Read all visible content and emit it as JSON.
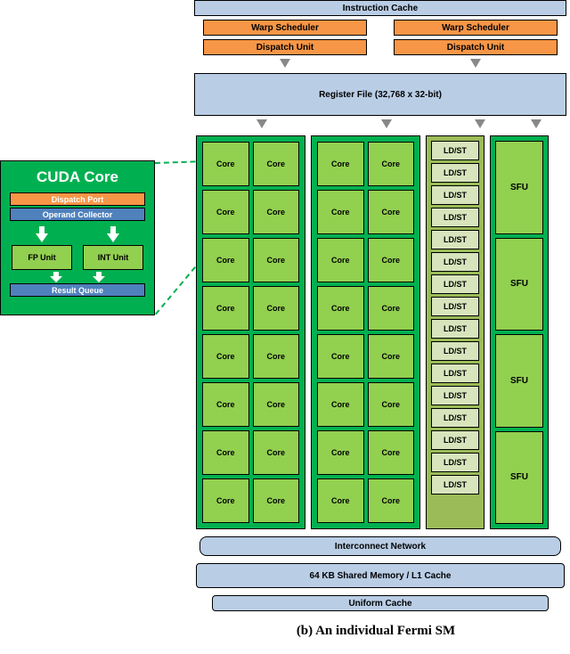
{
  "caption": "(b) An individual Fermi SM",
  "top": {
    "instruction_cache": "Instruction Cache",
    "warp_scheduler": "Warp Scheduler",
    "dispatch_unit": "Dispatch Unit",
    "register_file": "Register File (32,768 x 32-bit)"
  },
  "compute": {
    "core_label": "Core",
    "core_rows_per_column": 8,
    "core_columns": 2,
    "ldst_label": "LD/ST",
    "ldst_count": 16,
    "sfu_label": "SFU",
    "sfu_count": 4
  },
  "bottom": {
    "interconnect": "Interconnect Network",
    "shared_mem": "64 KB Shared Memory / L1 Cache",
    "uniform": "Uniform Cache"
  },
  "inset": {
    "title": "CUDA Core",
    "dispatch_port": "Dispatch Port",
    "operand_collector": "Operand Collector",
    "fp_unit": "FP Unit",
    "int_unit": "INT Unit",
    "result_queue": "Result Queue"
  },
  "colors": {
    "blue": "#b9cde5",
    "orange": "#f79646",
    "dark_green": "#00b050",
    "light_green": "#92d050",
    "olive": "#9bbb59",
    "pale_olive": "#d7e4bc",
    "inset_blue": "#4f81bd",
    "arrow_gray": "#888888"
  }
}
